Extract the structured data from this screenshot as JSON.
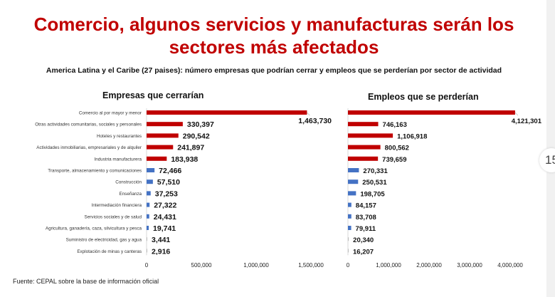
{
  "title_line1": "Comercio, algunos servicios y manufacturas serán los",
  "title_line2": "sectores más afectados",
  "subtitle": "America Latina y el Caribe (27 paises): número empresas que podrían cerrar y empleos que se perderían por sector de actividad",
  "source": "Fuente: CEPAL sobre la base de información oficial",
  "page_number": "15",
  "colors": {
    "highlight": "#c00000",
    "other": "#4472c4",
    "small": "#bfbfbf"
  },
  "chart_data": [
    {
      "type": "bar",
      "orientation": "horizontal",
      "title": "Empresas que cerrarían",
      "categories": [
        "Comercio al por mayor y menor",
        "Otras actividades comunitarias, sociales y personales",
        "Hoteles y restaurantes",
        "Actividades inmobiliarias, empresariales y de alquiler",
        "Industria manufacturera",
        "Transporte, almacenamiento y comunicaciones",
        "Construcción",
        "Enseñanza",
        "Intermediación financiera",
        "Servicios sociales y de salud",
        "Agricultura, ganadería, caza, silvicultura y pesca",
        "Suministro de electricidad, gas y agua",
        "Explotación de minas y canteras"
      ],
      "values": [
        1463730,
        330397,
        290542,
        241897,
        183938,
        72466,
        57510,
        37253,
        27322,
        24431,
        19741,
        3441,
        2916
      ],
      "labels": [
        "1,463,730",
        "330,397",
        "290,542",
        "241,897",
        "183,938",
        "72,466",
        "57,510",
        "37,253",
        "27,322",
        "24,431",
        "19,741",
        "3,441",
        "2,916"
      ],
      "xlim": [
        0,
        1500000
      ],
      "ticks": [
        "0",
        "500,000",
        "1,000,000",
        "1,500,000"
      ],
      "tick_values": [
        0,
        500000,
        1000000,
        1500000
      ],
      "grid": false
    },
    {
      "type": "bar",
      "orientation": "horizontal",
      "title": "Empleos que se perderían",
      "values": [
        4121301,
        746163,
        1106918,
        800562,
        739659,
        270331,
        250531,
        198705,
        84157,
        83708,
        79911,
        20340,
        16207
      ],
      "labels": [
        "4,121,301",
        "746,163",
        "1,106,918",
        "800,562",
        "739,659",
        "270,331",
        "250,531",
        "198,705",
        "84,157",
        "83,708",
        "79,911",
        "20,340",
        "16,207"
      ],
      "xlim": [
        0,
        4000000
      ],
      "ticks": [
        "0",
        "1,000,000",
        "2,000,000",
        "3,000,000",
        "4,000,000"
      ],
      "tick_values": [
        0,
        1000000,
        2000000,
        3000000,
        4000000
      ],
      "grid": false
    }
  ]
}
